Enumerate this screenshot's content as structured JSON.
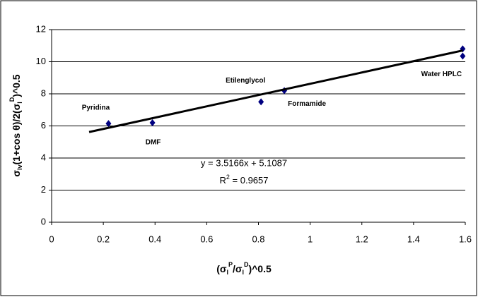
{
  "chart_data": {
    "type": "scatter",
    "x_label": [
      "(σ",
      "l",
      "P",
      "/σ",
      "l",
      "D",
      ")^0.5"
    ],
    "y_label": [
      "σ",
      "lv",
      "(1+cos θ)/2(σ",
      "l",
      "D",
      ")^0.5"
    ],
    "series": [
      {
        "color": "#000080",
        "x": [
          0.22,
          0.39,
          0.81,
          0.9,
          1.59,
          1.59
        ],
        "values": [
          6.15,
          6.2,
          7.5,
          8.2,
          10.8,
          10.35
        ],
        "labels": [
          "Pyridina",
          "DMF",
          "Etilenglycol",
          "Formamide",
          "Water HPLC",
          null
        ]
      }
    ],
    "trendline": {
      "color": "#000000",
      "x": [
        0.145,
        1.59
      ],
      "values": [
        5.62,
        10.7
      ],
      "equation": "y = 3.5166x + 5.1087",
      "r2": [
        "R",
        "2",
        " = 0.9657"
      ]
    },
    "xlim": [
      0,
      1.6
    ],
    "xticks": [
      0,
      0.2,
      0.4,
      0.6,
      0.8,
      1,
      1.2,
      1.4,
      1.6
    ],
    "ylim": [
      0,
      12
    ],
    "yticks": [
      0,
      2,
      4,
      6,
      8,
      10,
      12
    ],
    "grid": true
  }
}
